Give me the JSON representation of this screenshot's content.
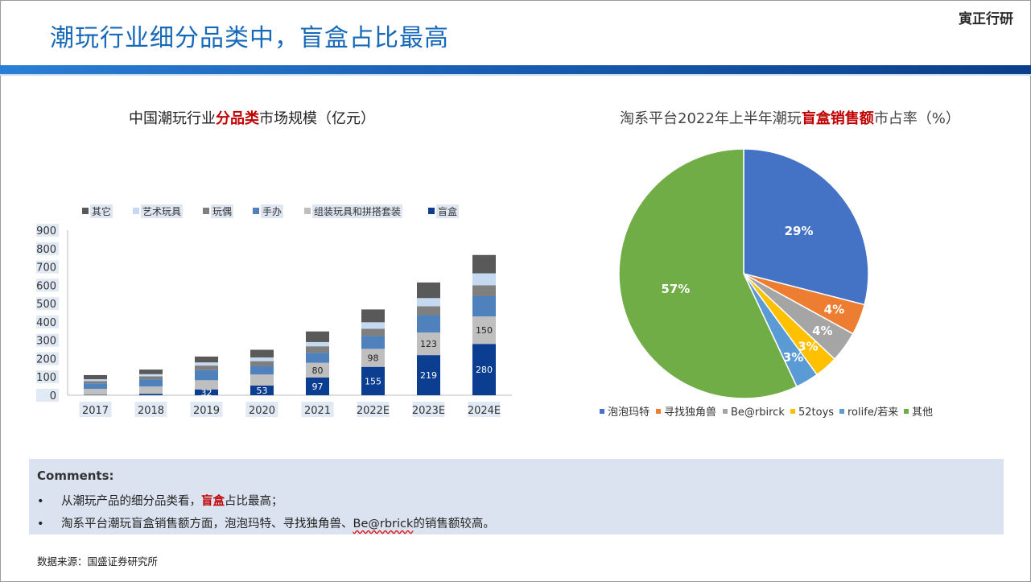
{
  "page": {
    "title": "潮玩行业细分品类中，盲盒占比最高",
    "brand": "寅正行研"
  },
  "left_chart_title": {
    "pre": "中国潮玩行业",
    "highlight": "分品类",
    "post": "市场规模（亿元）"
  },
  "right_chart_title": {
    "pre": "淘系平台2022年上半年潮玩",
    "highlight": "盲盒销售额",
    "post": "市占率（%）"
  },
  "colors": {
    "title_blue": "#1668b8",
    "highlight_red": "#c00000",
    "comments_bg": "#dbe3f0"
  },
  "chart_data": [
    {
      "type": "bar",
      "stacked": true,
      "categories": [
        "2017",
        "2018",
        "2019",
        "2020",
        "2021",
        "2022E",
        "2023E",
        "2024E"
      ],
      "ylim": [
        0,
        900
      ],
      "yticks": [
        0,
        100,
        200,
        300,
        400,
        500,
        600,
        700,
        800,
        900
      ],
      "legend_position": "top",
      "series": [
        {
          "name": "盲盒",
          "color": "#0b3d91",
          "values": [
            2,
            8,
            32,
            53,
            97,
            155,
            219,
            280
          ],
          "labels": [
            "",
            "",
            "32",
            "53",
            "97",
            "155",
            "219",
            "280"
          ]
        },
        {
          "name": "组装玩具和拼搭套装",
          "color": "#bfbfbf",
          "values": [
            33,
            40,
            50,
            60,
            80,
            98,
            123,
            150
          ],
          "labels": [
            "",
            "",
            "",
            "",
            "80",
            "98",
            "123",
            "150"
          ]
        },
        {
          "name": "手办",
          "color": "#4f81bd",
          "values": [
            30,
            38,
            55,
            45,
            55,
            70,
            95,
            110
          ],
          "labels": []
        },
        {
          "name": "玩偶",
          "color": "#7f7f7f",
          "values": [
            12,
            17,
            25,
            28,
            35,
            40,
            48,
            60
          ],
          "labels": []
        },
        {
          "name": "艺术玩具",
          "color": "#c5d9f1",
          "values": [
            10,
            12,
            17,
            20,
            23,
            35,
            45,
            65
          ],
          "labels": []
        },
        {
          "name": "其它",
          "color": "#595959",
          "values": [
            23,
            25,
            32,
            42,
            58,
            70,
            85,
            100
          ],
          "labels": []
        }
      ]
    },
    {
      "type": "pie",
      "slices": [
        {
          "name": "泡泡玛特",
          "value": 29,
          "label": "29%",
          "color": "#4472c4"
        },
        {
          "name": "寻找独角兽",
          "value": 4,
          "label": "4%",
          "color": "#ed7d31"
        },
        {
          "name": "Be@rbirck",
          "value": 4,
          "label": "4%",
          "color": "#a5a5a5"
        },
        {
          "name": "52toys",
          "value": 3,
          "label": "3%",
          "color": "#ffc000"
        },
        {
          "name": "rolife/若来",
          "value": 3,
          "label": "3%",
          "color": "#5b9bd5"
        },
        {
          "name": "其他",
          "value": 57,
          "label": "57%",
          "color": "#70ad47"
        }
      ],
      "legend_position": "bottom"
    }
  ],
  "comments": {
    "heading": "Comments:",
    "bullet": "•",
    "items": [
      {
        "pre": "从潮玩产品的细分品类看，",
        "highlight": "盲盒",
        "post": "占比最高；"
      },
      {
        "pre": "淘系平台潮玩盲盒销售额方面，泡泡玛特、寻找独角兽、",
        "mid": "Be@rbrick",
        "post": "的销售额较高。"
      }
    ]
  },
  "source": "数据来源：国盛证券研究所"
}
